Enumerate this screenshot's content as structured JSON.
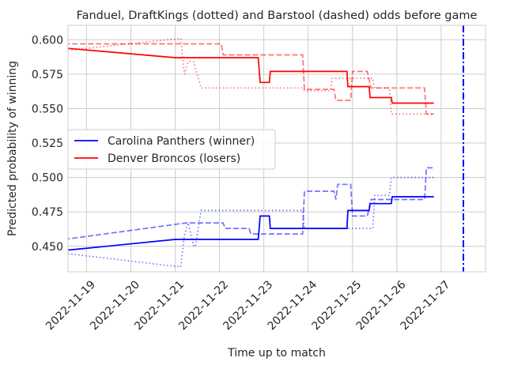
{
  "chart_data": {
    "type": "line",
    "title": "Fanduel, DraftKings (dotted) and Barstool (dashed) odds before game",
    "xlabel": "Time up to match",
    "ylabel": "Predicted probability of winning",
    "x_type": "date",
    "xlim": [
      "2022-11-18 14:00",
      "2022-11-28 00:00"
    ],
    "ylim": [
      0.4315,
      0.6105
    ],
    "x_ticks": [
      "2022-11-19",
      "2022-11-20",
      "2022-11-21",
      "2022-11-22",
      "2022-11-23",
      "2022-11-24",
      "2022-11-25",
      "2022-11-26",
      "2022-11-27"
    ],
    "y_ticks": [
      "0.450",
      "0.475",
      "0.500",
      "0.525",
      "0.550",
      "0.575",
      "0.600"
    ],
    "grid": true,
    "legend_position": "center-left",
    "vline": {
      "x": "2022-11-27 12:00",
      "color": "#0000ff",
      "style": "dashdot"
    },
    "series": [
      {
        "name": "Carolina Panthers (winner)",
        "color": "#0000ff",
        "style": "solid",
        "opacity": 1,
        "points": [
          [
            "2022-11-18 12:00",
            0.447
          ],
          [
            "2022-11-21 00:00",
            0.455
          ],
          [
            "2022-11-22 21:00",
            0.455
          ],
          [
            "2022-11-22 22:00",
            0.472
          ],
          [
            "2022-11-23 03:00",
            0.472
          ],
          [
            "2022-11-23 03:30",
            0.463
          ],
          [
            "2022-11-24 21:00",
            0.463
          ],
          [
            "2022-11-24 21:30",
            0.476
          ],
          [
            "2022-11-25 09:00",
            0.476
          ],
          [
            "2022-11-25 09:30",
            0.481
          ],
          [
            "2022-11-25 21:00",
            0.481
          ],
          [
            "2022-11-25 21:30",
            0.486
          ],
          [
            "2022-11-26 20:00",
            0.486
          ]
        ]
      },
      {
        "name": "Denver Broncos (losers)",
        "color": "#ff0000",
        "style": "solid",
        "opacity": 1,
        "points": [
          [
            "2022-11-18 12:00",
            0.594
          ],
          [
            "2022-11-21 00:00",
            0.587
          ],
          [
            "2022-11-22 21:00",
            0.587
          ],
          [
            "2022-11-22 22:00",
            0.569
          ],
          [
            "2022-11-23 03:00",
            0.569
          ],
          [
            "2022-11-23 03:30",
            0.577
          ],
          [
            "2022-11-24 21:00",
            0.577
          ],
          [
            "2022-11-24 21:30",
            0.566
          ],
          [
            "2022-11-25 09:00",
            0.566
          ],
          [
            "2022-11-25 09:30",
            0.558
          ],
          [
            "2022-11-25 21:00",
            0.558
          ],
          [
            "2022-11-25 21:30",
            0.554
          ],
          [
            "2022-11-26 20:00",
            0.554
          ]
        ]
      },
      {
        "color": "#0000ff",
        "style": "dotted",
        "opacity": 0.55,
        "points": [
          [
            "2022-11-18 12:00",
            0.445
          ],
          [
            "2022-11-21 03:00",
            0.435
          ],
          [
            "2022-11-21 05:00",
            0.458
          ],
          [
            "2022-11-21 07:00",
            0.467
          ],
          [
            "2022-11-21 10:00",
            0.45
          ],
          [
            "2022-11-21 11:00",
            0.45
          ],
          [
            "2022-11-21 14:00",
            0.476
          ],
          [
            "2022-11-23 21:00",
            0.476
          ],
          [
            "2022-11-23 22:00",
            0.463
          ],
          [
            "2022-11-25 11:00",
            0.463
          ],
          [
            "2022-11-25 12:00",
            0.487
          ],
          [
            "2022-11-25 20:00",
            0.487
          ],
          [
            "2022-11-25 21:00",
            0.5
          ],
          [
            "2022-11-26 20:00",
            0.5
          ]
        ]
      },
      {
        "color": "#ff0000",
        "style": "dotted",
        "opacity": 0.55,
        "points": [
          [
            "2022-11-18 12:00",
            0.592
          ],
          [
            "2022-11-21 03:00",
            0.601
          ],
          [
            "2022-11-21 05:00",
            0.575
          ],
          [
            "2022-11-21 07:00",
            0.584
          ],
          [
            "2022-11-21 10:00",
            0.584
          ],
          [
            "2022-11-21 14:00",
            0.565
          ],
          [
            "2022-11-23 21:00",
            0.565
          ],
          [
            "2022-11-23 22:00",
            0.563
          ],
          [
            "2022-11-24 12:00",
            0.563
          ],
          [
            "2022-11-24 13:00",
            0.572
          ],
          [
            "2022-11-25 11:00",
            0.572
          ],
          [
            "2022-11-25 12:00",
            0.565
          ],
          [
            "2022-11-25 20:00",
            0.565
          ],
          [
            "2022-11-25 21:00",
            0.546
          ],
          [
            "2022-11-26 20:00",
            0.546
          ]
        ]
      },
      {
        "color": "#0000ff",
        "style": "dashed",
        "opacity": 0.55,
        "points": [
          [
            "2022-11-18 12:00",
            0.455
          ],
          [
            "2022-11-21 06:00",
            0.467
          ],
          [
            "2022-11-22 02:00",
            0.467
          ],
          [
            "2022-11-22 03:00",
            0.463
          ],
          [
            "2022-11-22 16:00",
            0.463
          ],
          [
            "2022-11-22 17:00",
            0.459
          ],
          [
            "2022-11-23 21:00",
            0.459
          ],
          [
            "2022-11-23 22:00",
            0.49
          ],
          [
            "2022-11-24 14:00",
            0.49
          ],
          [
            "2022-11-24 15:00",
            0.484
          ],
          [
            "2022-11-24 16:00",
            0.495
          ],
          [
            "2022-11-24 23:00",
            0.495
          ],
          [
            "2022-11-25 00:00",
            0.472
          ],
          [
            "2022-11-25 08:00",
            0.472
          ],
          [
            "2022-11-25 10:00",
            0.484
          ],
          [
            "2022-11-26 15:00",
            0.484
          ],
          [
            "2022-11-26 16:00",
            0.507
          ],
          [
            "2022-11-26 20:00",
            0.507
          ]
        ]
      },
      {
        "color": "#ff0000",
        "style": "dashed",
        "opacity": 0.55,
        "points": [
          [
            "2022-11-18 12:00",
            0.597
          ],
          [
            "2022-11-22 01:00",
            0.597
          ],
          [
            "2022-11-22 02:00",
            0.589
          ],
          [
            "2022-11-23 21:00",
            0.589
          ],
          [
            "2022-11-23 22:00",
            0.564
          ],
          [
            "2022-11-24 14:00",
            0.564
          ],
          [
            "2022-11-24 15:00",
            0.556
          ],
          [
            "2022-11-24 23:00",
            0.556
          ],
          [
            "2022-11-25 00:00",
            0.577
          ],
          [
            "2022-11-25 08:00",
            0.577
          ],
          [
            "2022-11-25 10:00",
            0.565
          ],
          [
            "2022-11-26 15:00",
            0.565
          ],
          [
            "2022-11-26 16:00",
            0.546
          ],
          [
            "2022-11-26 20:00",
            0.546
          ]
        ]
      }
    ]
  }
}
